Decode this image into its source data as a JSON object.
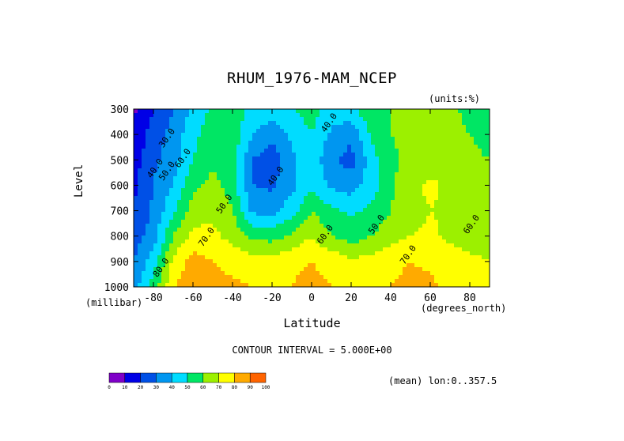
{
  "chart_data": {
    "type": "heatmap",
    "title": "RHUM_1976-MAM_NCEP",
    "units_note": "(units:%)",
    "ylabel": "Level",
    "yunit": "(millibar)",
    "xlabel": "Latitude",
    "xunit": "(degrees_north)",
    "contour_interval": "CONTOUR INTERVAL = 5.000E+00",
    "footnote": "(mean) lon:0..357.5",
    "xlim": [
      -90,
      90
    ],
    "ylim": [
      1000,
      300
    ],
    "x_ticks": [
      -80,
      -60,
      -40,
      -20,
      0,
      20,
      40,
      60,
      80
    ],
    "x_tick_labels": [
      "-80",
      "-60",
      "-40",
      "-20",
      "0",
      "20",
      "40",
      "60",
      "80"
    ],
    "y_ticks": [
      300,
      400,
      500,
      600,
      700,
      800,
      900,
      1000
    ],
    "y_tick_labels": [
      "300",
      "400",
      "500",
      "600",
      "700",
      "800",
      "900",
      "1000"
    ],
    "latitudes": [
      -90,
      -80,
      -70,
      -60,
      -50,
      -40,
      -30,
      -20,
      -10,
      0,
      10,
      20,
      30,
      40,
      50,
      60,
      70,
      80,
      90
    ],
    "levels": [
      300,
      400,
      500,
      600,
      700,
      800,
      900,
      1000
    ],
    "values": [
      [
        8,
        20,
        30,
        42,
        52,
        55,
        48,
        45,
        50,
        55,
        45,
        47,
        58,
        60,
        62,
        65,
        63,
        56,
        50
      ],
      [
        12,
        25,
        33,
        47,
        56,
        57,
        40,
        33,
        42,
        50,
        38,
        32,
        52,
        60,
        63,
        66,
        64,
        60,
        55
      ],
      [
        15,
        28,
        35,
        50,
        58,
        55,
        30,
        24,
        38,
        46,
        32,
        26,
        45,
        58,
        62,
        64,
        65,
        63,
        60
      ],
      [
        18,
        30,
        40,
        58,
        63,
        56,
        30,
        28,
        37,
        48,
        38,
        35,
        45,
        58,
        68,
        72,
        68,
        66,
        63
      ],
      [
        20,
        32,
        48,
        65,
        68,
        60,
        38,
        36,
        46,
        60,
        52,
        48,
        52,
        60,
        66,
        70,
        68,
        66,
        64
      ],
      [
        25,
        35,
        60,
        73,
        72,
        67,
        58,
        56,
        62,
        70,
        60,
        55,
        60,
        66,
        70,
        72,
        68,
        66,
        64
      ],
      [
        30,
        45,
        72,
        84,
        80,
        76,
        75,
        74,
        78,
        80,
        77,
        72,
        74,
        76,
        80,
        78,
        74,
        72,
        70
      ],
      [
        35,
        55,
        78,
        90,
        86,
        82,
        80,
        78,
        80,
        83,
        80,
        76,
        78,
        80,
        84,
        82,
        78,
        77,
        75
      ]
    ],
    "contour_labels": [
      {
        "text": "30.0",
        "lat": -72,
        "lev": 420
      },
      {
        "text": "40.0",
        "lat": -78,
        "lev": 540
      },
      {
        "text": "50.0",
        "lat": -72,
        "lev": 550
      },
      {
        "text": "60.0",
        "lat": -64,
        "lev": 500
      },
      {
        "text": "40.0",
        "lat": 10,
        "lev": 360
      },
      {
        "text": "40.0",
        "lat": -17,
        "lev": 570
      },
      {
        "text": "50.0",
        "lat": -43,
        "lev": 680
      },
      {
        "text": "60.0",
        "lat": 8,
        "lev": 800
      },
      {
        "text": "50.0",
        "lat": 34,
        "lev": 760
      },
      {
        "text": "60.0",
        "lat": 82,
        "lev": 760
      },
      {
        "text": "70.0",
        "lat": -52,
        "lev": 810
      },
      {
        "text": "70.0",
        "lat": 50,
        "lev": 880
      },
      {
        "text": "80.0",
        "lat": -75,
        "lev": 930
      }
    ],
    "colorbar": {
      "colors": [
        "#7f00c8",
        "#0000e6",
        "#0050e6",
        "#0096f0",
        "#00dcff",
        "#00e664",
        "#9cf000",
        "#ffff00",
        "#ffaa00",
        "#ff6400",
        "#ff0000"
      ],
      "labels": [
        "0",
        "10",
        "20",
        "30",
        "40",
        "50",
        "60",
        "70",
        "80",
        "90",
        "100"
      ]
    }
  }
}
